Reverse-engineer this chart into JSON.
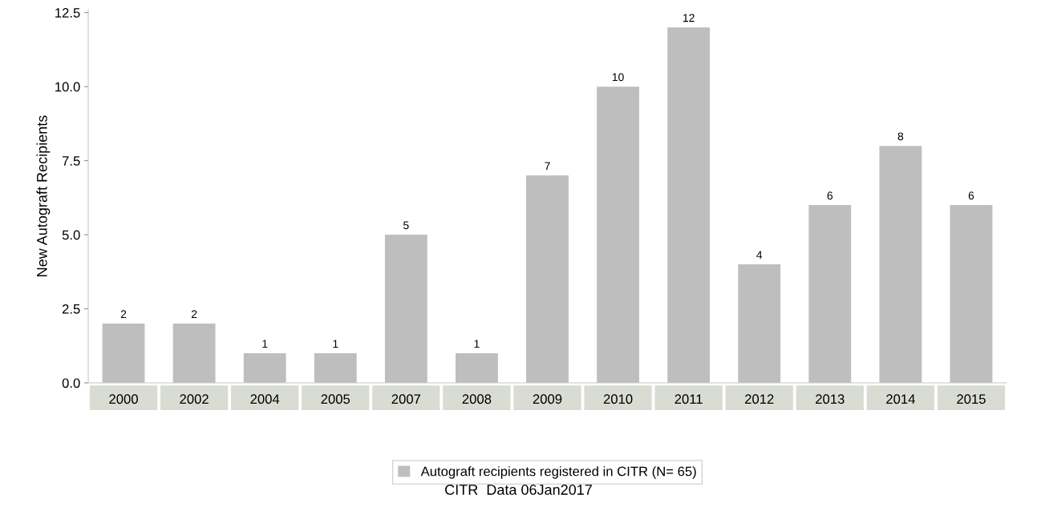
{
  "chart_data": {
    "type": "bar",
    "ylabel": "New Autograft Recipients",
    "categories": [
      "2000",
      "2002",
      "2004",
      "2005",
      "2007",
      "2008",
      "2009",
      "2010",
      "2011",
      "2012",
      "2013",
      "2014",
      "2015"
    ],
    "series": [
      {
        "name": "Autograft recipients registered in CITR (N= 65)",
        "color": "#bebebe",
        "values": [
          2,
          2,
          1,
          1,
          5,
          1,
          7,
          10,
          12,
          4,
          6,
          8,
          6
        ]
      }
    ],
    "ylim": [
      0,
      12.6
    ],
    "yticks": [
      {
        "value": 0,
        "label": "0.0"
      },
      {
        "value": 2.5,
        "label": "2.5"
      },
      {
        "value": 5,
        "label": "5.0"
      },
      {
        "value": 7.5,
        "label": "7.5"
      },
      {
        "value": 10,
        "label": "10.0"
      },
      {
        "value": 12.5,
        "label": "12.5"
      }
    ],
    "data_labels": true,
    "grid": false,
    "legend": "bottom",
    "annotations": [
      "CITR  Data 06Jan2017"
    ]
  }
}
